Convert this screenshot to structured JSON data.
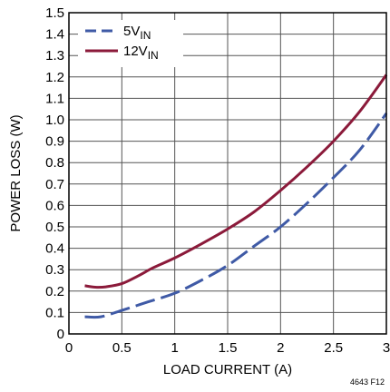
{
  "chart_data": {
    "type": "line",
    "title": "",
    "xlabel": "LOAD CURRENT (A)",
    "ylabel": "POWER LOSS (W)",
    "xlim": [
      0,
      3
    ],
    "ylim": [
      0,
      1.5
    ],
    "x_ticks": [
      "0",
      "0.5",
      "1",
      "1.5",
      "2",
      "2.5",
      "3"
    ],
    "y_ticks": [
      "0",
      "0.1",
      "0.2",
      "0.3",
      "0.4",
      "0.5",
      "0.6",
      "0.7",
      "0.8",
      "0.9",
      "1.0",
      "1.1",
      "1.2",
      "1.3",
      "1.4",
      "1.5"
    ],
    "grid": true,
    "legend_position": "top-left",
    "series": [
      {
        "name": "5V",
        "name_subscript": "IN",
        "color": "#3f5aa6",
        "dash": "dashed",
        "x": [
          0.15,
          0.3,
          0.5,
          0.75,
          1.0,
          1.25,
          1.5,
          1.75,
          2.0,
          2.25,
          2.5,
          2.75,
          3.0
        ],
        "y": [
          0.08,
          0.08,
          0.11,
          0.15,
          0.19,
          0.25,
          0.32,
          0.41,
          0.5,
          0.61,
          0.73,
          0.86,
          1.03
        ]
      },
      {
        "name": "12V",
        "name_subscript": "IN",
        "color": "#8b1a3a",
        "dash": "solid",
        "x": [
          0.15,
          0.25,
          0.35,
          0.5,
          0.65,
          0.8,
          1.0,
          1.25,
          1.5,
          1.75,
          2.0,
          2.25,
          2.5,
          2.75,
          3.0
        ],
        "y": [
          0.225,
          0.218,
          0.22,
          0.235,
          0.27,
          0.31,
          0.355,
          0.42,
          0.49,
          0.57,
          0.67,
          0.78,
          0.9,
          1.04,
          1.21
        ]
      }
    ],
    "figure_code": "4643 F12"
  }
}
